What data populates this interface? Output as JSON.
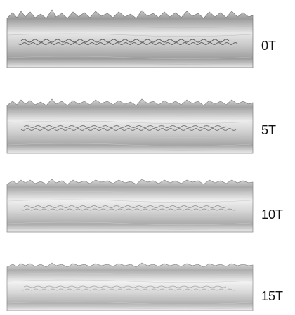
{
  "panels": [
    {
      "label": "0T"
    },
    {
      "label": "5T"
    },
    {
      "label": "10T"
    },
    {
      "label": "15T"
    }
  ],
  "colors": {
    "background": "#ffffff",
    "surface_light": "#f4f4f4",
    "surface_mid": "#cfcfcf",
    "surface_dark": "#8a8a8a",
    "text": "#111111"
  }
}
